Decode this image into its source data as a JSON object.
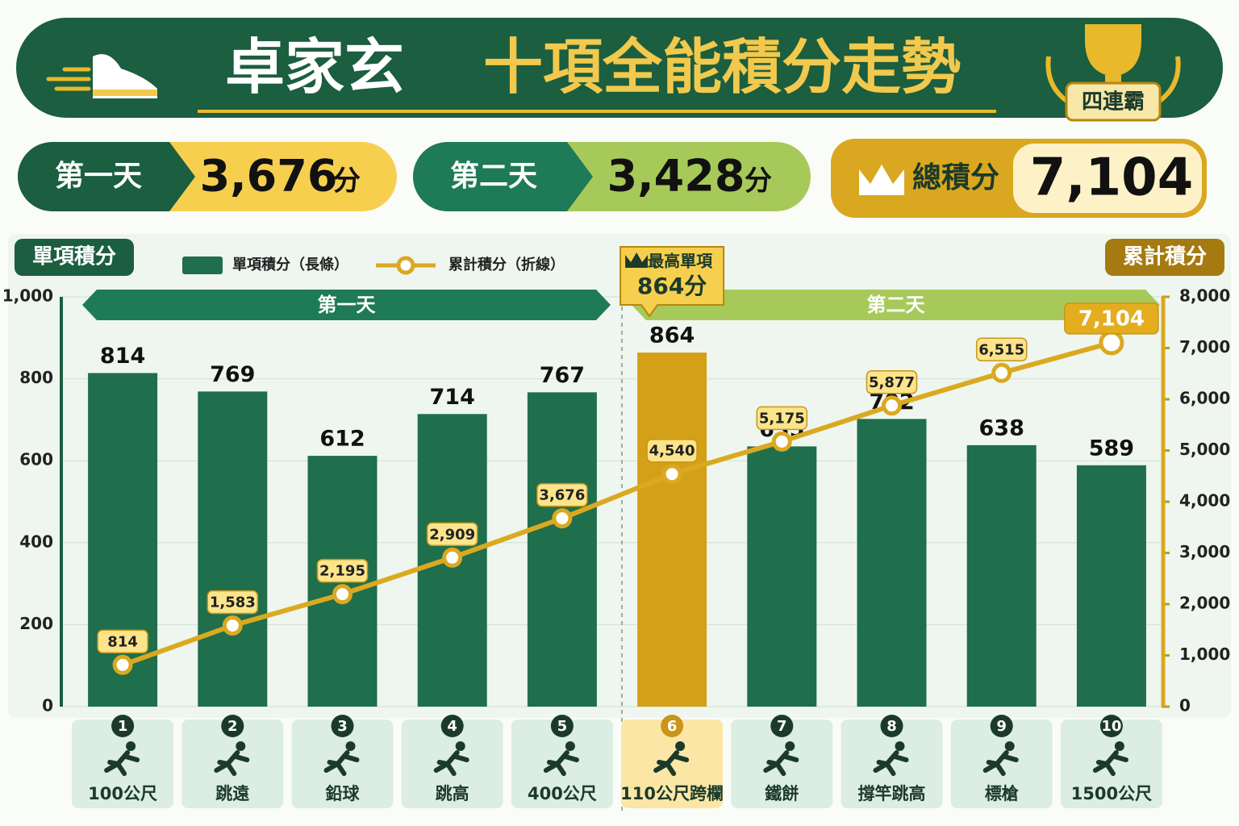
{
  "header": {
    "name": "卓家玄",
    "title": "十項全能積分走勢",
    "badge": "四連霸"
  },
  "summary": [
    {
      "label": "第一天",
      "value": "3,676",
      "unit": "分"
    },
    {
      "label": "第二天",
      "value": "3,428",
      "unit": "分"
    },
    {
      "label": "總積分",
      "value": "7,104"
    }
  ],
  "chart_data": {
    "type": "bar",
    "y_label": "單項積分",
    "y2_label": "累計積分",
    "categories": [
      "100公尺",
      "跳遠",
      "鉛球",
      "跳高",
      "400公尺",
      "110公尺跨欄",
      "鐵餅",
      "撐竿跳高",
      "標槍",
      "1500公尺"
    ],
    "event_numbers": [
      1,
      2,
      3,
      4,
      5,
      6,
      7,
      8,
      9,
      10
    ],
    "day_bands": [
      "第一天",
      "第二天"
    ],
    "annotation": {
      "title": "最高單項",
      "text": "864分"
    },
    "series": [
      {
        "name": "單項積分（長條）",
        "type": "bar",
        "color": "#1f6e4c",
        "highlight_color": "#d4a017",
        "values": [
          814,
          769,
          612,
          714,
          767,
          864,
          635,
          702,
          638,
          589
        ]
      },
      {
        "name": "累計積分（折線）",
        "type": "line",
        "axis": "y2",
        "color": "#dba920",
        "values": [
          814,
          1583,
          2195,
          2909,
          3676,
          4540,
          5175,
          5877,
          6515,
          7104
        ],
        "value_labels": [
          "814",
          "1,583",
          "2,195",
          "2,909",
          "3,676",
          "4,540",
          "5,175",
          "5,877",
          "6,515",
          "7,104"
        ]
      }
    ],
    "ylim": [
      0,
      1000
    ],
    "yticks": [
      0,
      200,
      400,
      600,
      800,
      {
        "value": 1000,
        "label": "1,000"
      }
    ],
    "y2lim": [
      0,
      8000
    ],
    "y2ticks": [
      0,
      {
        "value": 1000,
        "label": "1,000"
      },
      {
        "value": 2000,
        "label": "2,000"
      },
      {
        "value": 3000,
        "label": "3,000"
      },
      {
        "value": 4000,
        "label": "4,000"
      },
      {
        "value": 5000,
        "label": "5,000"
      },
      {
        "value": 6000,
        "label": "6,000"
      },
      {
        "value": 7000,
        "label": "7,000"
      },
      {
        "value": 8000,
        "label": "8,000"
      }
    ],
    "grid": true
  }
}
